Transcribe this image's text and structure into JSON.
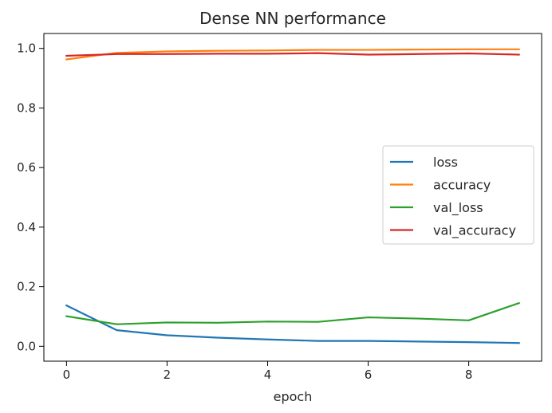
{
  "chart_data": {
    "type": "line",
    "title": "Dense NN performance",
    "xlabel": "epoch",
    "ylabel": "",
    "xlim": [
      -0.45,
      9.45
    ],
    "ylim": [
      -0.05,
      1.05
    ],
    "xticks": [
      0,
      2,
      4,
      6,
      8
    ],
    "yticks": [
      0.0,
      0.2,
      0.4,
      0.6,
      0.8,
      1.0
    ],
    "xtick_labels": [
      "0",
      "2",
      "4",
      "6",
      "8"
    ],
    "ytick_labels": [
      "0.0",
      "0.2",
      "0.4",
      "0.6",
      "0.8",
      "1.0"
    ],
    "grid": false,
    "legend_position": "center-right",
    "x": [
      0,
      1,
      2,
      3,
      4,
      5,
      6,
      7,
      8,
      9
    ],
    "series": [
      {
        "name": "loss",
        "color": "#1f77b4",
        "values": [
          0.137,
          0.054,
          0.037,
          0.029,
          0.023,
          0.018,
          0.018,
          0.016,
          0.014,
          0.011
        ]
      },
      {
        "name": "accuracy",
        "color": "#ff7f0e",
        "values": [
          0.963,
          0.985,
          0.99,
          0.992,
          0.993,
          0.995,
          0.995,
          0.996,
          0.997,
          0.997
        ]
      },
      {
        "name": "val_loss",
        "color": "#2ca02c",
        "values": [
          0.101,
          0.074,
          0.08,
          0.079,
          0.083,
          0.082,
          0.097,
          0.093,
          0.087,
          0.145
        ]
      },
      {
        "name": "val_accuracy",
        "color": "#d62728",
        "values": [
          0.975,
          0.981,
          0.981,
          0.982,
          0.982,
          0.984,
          0.979,
          0.981,
          0.983,
          0.979
        ]
      }
    ]
  }
}
